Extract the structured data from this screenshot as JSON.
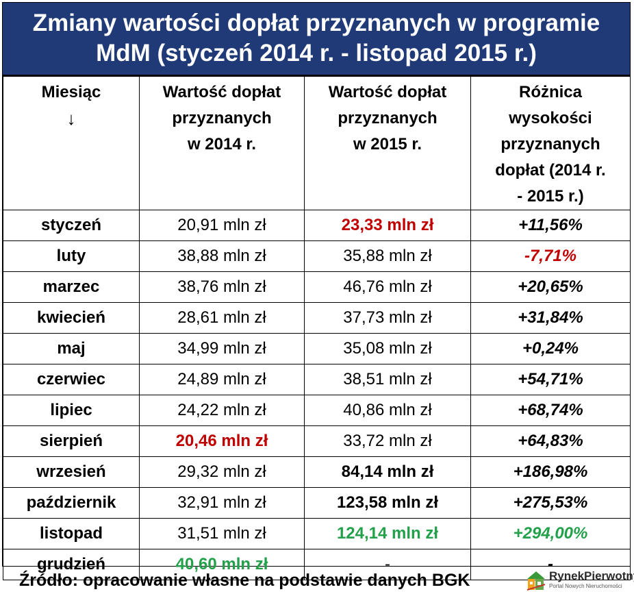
{
  "title": {
    "line1": "Zmiany wartości dopłat przyznanych w programie",
    "line2": "MdM (styczeń 2014 r. - listopad 2015 r.)"
  },
  "headers": {
    "month": "Miesiąc",
    "month_arrow": "↓",
    "col2": [
      "Wartość dopłat",
      "przyznanych",
      "w 2014 r."
    ],
    "col3": [
      "Wartość dopłat",
      "przyznanych",
      "w 2015 r."
    ],
    "col4": [
      "Różnica",
      "wysokości",
      "przyznanych",
      "dopłat (2014 r.",
      "- 2015 r.)"
    ]
  },
  "rows": [
    {
      "month": "styczeń",
      "v2014": "20,91 mln zł",
      "v2015": "23,33 mln zł",
      "diff": "+11,56%",
      "s2014": "",
      "s2015": "red",
      "sdiff": ""
    },
    {
      "month": "luty",
      "v2014": "38,88 mln zł",
      "v2015": "35,88 mln zł",
      "diff": "-7,71%",
      "s2014": "",
      "s2015": "",
      "sdiff": "red"
    },
    {
      "month": "marzec",
      "v2014": "38,76 mln zł",
      "v2015": "46,76 mln zł",
      "diff": "+20,65%",
      "s2014": "",
      "s2015": "",
      "sdiff": ""
    },
    {
      "month": "kwiecień",
      "v2014": "28,61 mln zł",
      "v2015": "37,73 mln zł",
      "diff": "+31,84%",
      "s2014": "",
      "s2015": "",
      "sdiff": ""
    },
    {
      "month": "maj",
      "v2014": "34,99 mln zł",
      "v2015": "35,08 mln zł",
      "diff": "+0,24%",
      "s2014": "",
      "s2015": "",
      "sdiff": ""
    },
    {
      "month": "czerwiec",
      "v2014": "24,89 mln zł",
      "v2015": "38,51 mln zł",
      "diff": "+54,71%",
      "s2014": "",
      "s2015": "",
      "sdiff": ""
    },
    {
      "month": "lipiec",
      "v2014": "24,22 mln zł",
      "v2015": "40,86 mln zł",
      "diff": "+68,74%",
      "s2014": "",
      "s2015": "",
      "sdiff": ""
    },
    {
      "month": "sierpień",
      "v2014": "20,46 mln zł",
      "v2015": "33,72 mln zł",
      "diff": "+64,83%",
      "s2014": "red",
      "s2015": "",
      "sdiff": ""
    },
    {
      "month": "wrzesień",
      "v2014": "29,32 mln zł",
      "v2015": "84,14 mln zł",
      "diff": "+186,98%",
      "s2014": "",
      "s2015": "bold",
      "sdiff": ""
    },
    {
      "month": "październik",
      "v2014": "32,91 mln zł",
      "v2015": "123,58 mln zł",
      "diff": "+275,53%",
      "s2014": "",
      "s2015": "bold",
      "sdiff": ""
    },
    {
      "month": "listopad",
      "v2014": "31,51 mln zł",
      "v2015": "124,14 mln zł",
      "diff": "+294,00%",
      "s2014": "",
      "s2015": "green",
      "sdiff": "green"
    },
    {
      "month": "grudzień",
      "v2014": "40,60 mln zł",
      "v2015": "-",
      "diff": "-",
      "s2014": "green",
      "s2015": "",
      "sdiff": ""
    }
  ],
  "footer": "Źródło: opracowanie własne na podstawie danych BGK",
  "logo": {
    "name": "RynekPierwotny",
    "tagline": "Portal Nowych Nieruchomości"
  },
  "colors": {
    "title_band": "#1f3a76",
    "highlight_red": "#c00000",
    "highlight_green": "#22a14a"
  }
}
